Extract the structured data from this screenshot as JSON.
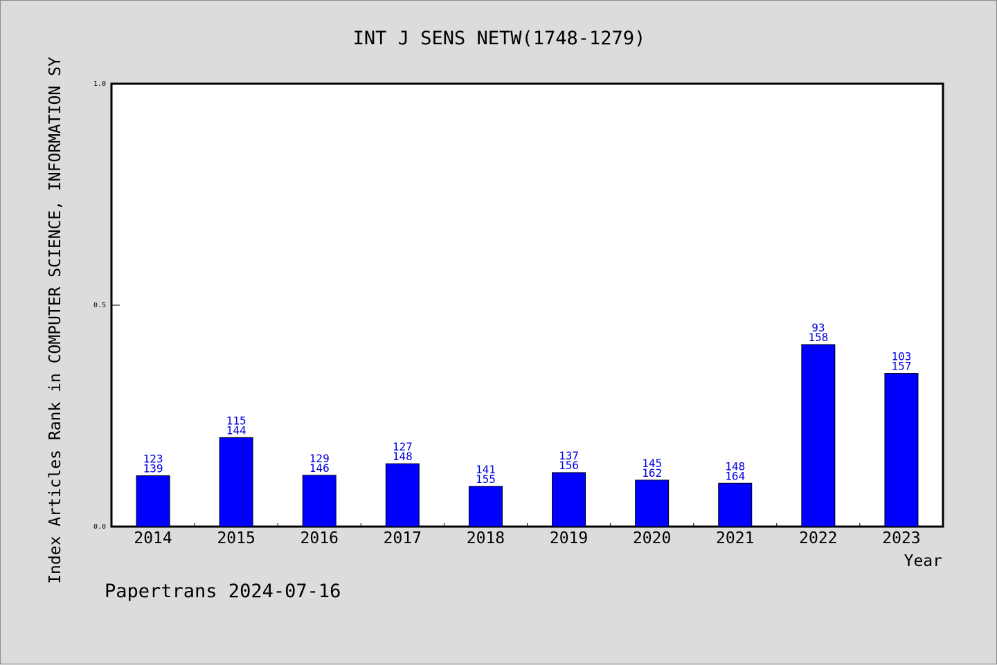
{
  "chart_data": {
    "type": "bar",
    "title": "INT J SENS NETW(1748-1279)",
    "xlabel": "Year",
    "ylabel": "Index Articles Rank in COMPUTER SCIENCE, INFORMATION SY",
    "ylim": [
      0,
      1.0
    ],
    "yticks": [
      "0.0",
      "0.5",
      "1.0"
    ],
    "categories": [
      "2014",
      "2015",
      "2016",
      "2017",
      "2018",
      "2019",
      "2020",
      "2021",
      "2022",
      "2023"
    ],
    "values": [
      0.115,
      0.201,
      0.116,
      0.142,
      0.091,
      0.122,
      0.105,
      0.098,
      0.411,
      0.346
    ],
    "rank_labels": [
      "123",
      "115",
      "129",
      "127",
      "141",
      "137",
      "145",
      "148",
      "93",
      "103"
    ],
    "total_labels": [
      "139",
      "144",
      "146",
      "148",
      "155",
      "156",
      "162",
      "164",
      "158",
      "157"
    ],
    "bar_color": "#0000ff",
    "label_color": "#0000dd",
    "grid": false,
    "legend": "none"
  },
  "footer": {
    "text": "Papertrans 2024-07-16"
  }
}
